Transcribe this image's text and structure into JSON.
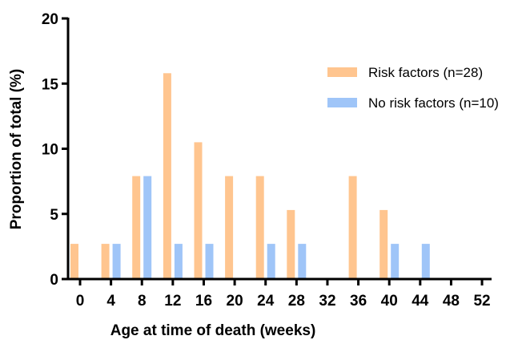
{
  "chart_data": {
    "type": "bar",
    "title": "",
    "xlabel": "Age at time of death (weeks)",
    "ylabel": "Proportion of total (%)",
    "ylim": [
      0,
      20
    ],
    "y_ticks": [
      0,
      5,
      10,
      15,
      20
    ],
    "x_ticks": [
      0,
      4,
      8,
      12,
      16,
      20,
      24,
      28,
      32,
      36,
      40,
      44,
      48,
      52
    ],
    "grid": false,
    "legend_position": "top-right",
    "series": [
      {
        "name": "Risk factors (n=28)",
        "color": "#FFC58F",
        "x": [
          0,
          4,
          8,
          12,
          16,
          20,
          24,
          28,
          36,
          40
        ],
        "values": [
          2.7,
          2.7,
          7.9,
          15.8,
          10.5,
          7.9,
          7.9,
          5.3,
          7.9,
          5.3
        ]
      },
      {
        "name": "No risk factors (n=10)",
        "color": "#9FC5F8",
        "x": [
          4,
          8,
          12,
          16,
          24,
          28,
          40,
          44
        ],
        "values": [
          2.7,
          7.9,
          2.7,
          2.7,
          2.7,
          2.7,
          2.7,
          2.7
        ]
      }
    ]
  }
}
